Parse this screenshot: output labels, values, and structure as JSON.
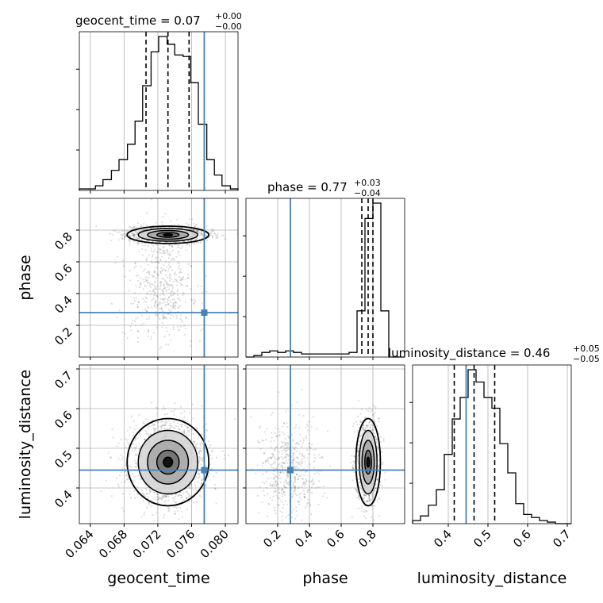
{
  "chart_data": {
    "type": "corner",
    "parameters": [
      "geocent_time",
      "phase",
      "luminosity_distance"
    ],
    "truth": {
      "geocent_time": 0.0775,
      "phase": 0.28,
      "luminosity_distance": 0.445
    },
    "titles": [
      {
        "text": "geocent_time = 0.07",
        "plus": "+0.00",
        "minus": "−0.00"
      },
      {
        "text": "phase = 0.77",
        "plus": "+0.03",
        "minus": "−0.04"
      },
      {
        "text": "luminosity_distance = 0.46",
        "plus": "+0.05",
        "minus": "−0.05"
      }
    ],
    "axes": {
      "geocent_time": {
        "range": [
          0.0627,
          0.0815
        ],
        "ticks": [
          0.064,
          0.068,
          0.072,
          0.076,
          0.08
        ],
        "tick_labels": [
          "0.064",
          "0.068",
          "0.072",
          "0.076",
          "0.080"
        ],
        "label": "geocent_time"
      },
      "phase": {
        "range": [
          0.0,
          1.0
        ],
        "ticks": [
          0.2,
          0.4,
          0.6,
          0.8
        ],
        "tick_labels": [
          "0.2",
          "0.4",
          "0.6",
          "0.8"
        ],
        "label": "phase"
      },
      "luminosity_distance": {
        "range": [
          0.31,
          0.71
        ],
        "ticks": [
          0.4,
          0.5,
          0.6,
          0.7
        ],
        "tick_labels": [
          "0.4",
          "0.5",
          "0.6",
          "0.7"
        ],
        "label": "luminosity_distance"
      }
    },
    "histograms": {
      "geocent_time": {
        "bin_edges": [
          0.0627,
          0.0636,
          0.0646,
          0.0655,
          0.0665,
          0.0674,
          0.0684,
          0.0693,
          0.0702,
          0.0712,
          0.0721,
          0.0731,
          0.074,
          0.075,
          0.0759,
          0.0768,
          0.0778,
          0.0787,
          0.0796,
          0.0806,
          0.0815
        ],
        "counts": [
          0.01,
          0.01,
          0.03,
          0.07,
          0.13,
          0.2,
          0.3,
          0.45,
          0.68,
          0.9,
          1.0,
          0.95,
          0.88,
          0.87,
          0.7,
          0.43,
          0.2,
          0.1,
          0.03,
          0.01
        ],
        "quantiles": [
          0.0706,
          0.0732,
          0.0757
        ]
      },
      "phase": {
        "bin_edges": [
          0.0,
          0.05,
          0.1,
          0.15,
          0.2,
          0.25,
          0.3,
          0.35,
          0.4,
          0.45,
          0.5,
          0.55,
          0.6,
          0.65,
          0.7,
          0.75,
          0.8,
          0.85,
          0.9,
          0.95,
          1.0
        ],
        "counts": [
          0.0,
          0.01,
          0.03,
          0.04,
          0.03,
          0.04,
          0.03,
          0.02,
          0.02,
          0.02,
          0.02,
          0.02,
          0.02,
          0.03,
          0.3,
          0.9,
          1.0,
          0.3,
          0.0,
          0.0
        ],
        "quantiles": [
          0.73,
          0.77,
          0.8
        ]
      },
      "luminosity_distance": {
        "bin_edges": [
          0.31,
          0.33,
          0.35,
          0.37,
          0.39,
          0.41,
          0.43,
          0.45,
          0.47,
          0.49,
          0.51,
          0.53,
          0.55,
          0.57,
          0.59,
          0.61,
          0.63,
          0.65,
          0.67,
          0.69,
          0.71
        ],
        "counts": [
          0.02,
          0.05,
          0.12,
          0.22,
          0.45,
          0.68,
          0.82,
          1.0,
          0.92,
          0.82,
          0.75,
          0.52,
          0.33,
          0.13,
          0.06,
          0.04,
          0.02,
          0.01,
          0.0,
          0.0
        ],
        "quantiles": [
          0.415,
          0.465,
          0.517
        ]
      }
    },
    "samples_2d": [
      {
        "x": "geocent_time",
        "y": "phase",
        "center": [
          0.0732,
          0.77
        ],
        "sigma": [
          0.0022,
          0.025
        ],
        "secondary_center": [
          0.0725,
          0.45
        ],
        "secondary_sigma": [
          0.002,
          0.18
        ]
      },
      {
        "x": "geocent_time",
        "y": "luminosity_distance",
        "center": [
          0.0732,
          0.465
        ],
        "sigma": [
          0.0022,
          0.05
        ]
      },
      {
        "x": "phase",
        "y": "luminosity_distance",
        "center": [
          0.77,
          0.465
        ],
        "sigma": [
          0.035,
          0.05
        ],
        "secondary_center": [
          0.28,
          0.45
        ],
        "secondary_sigma": [
          0.1,
          0.06
        ]
      }
    ]
  },
  "colors": {
    "truth": "#4682b4",
    "hist": "#000000",
    "grid": "#b0b0b0"
  }
}
